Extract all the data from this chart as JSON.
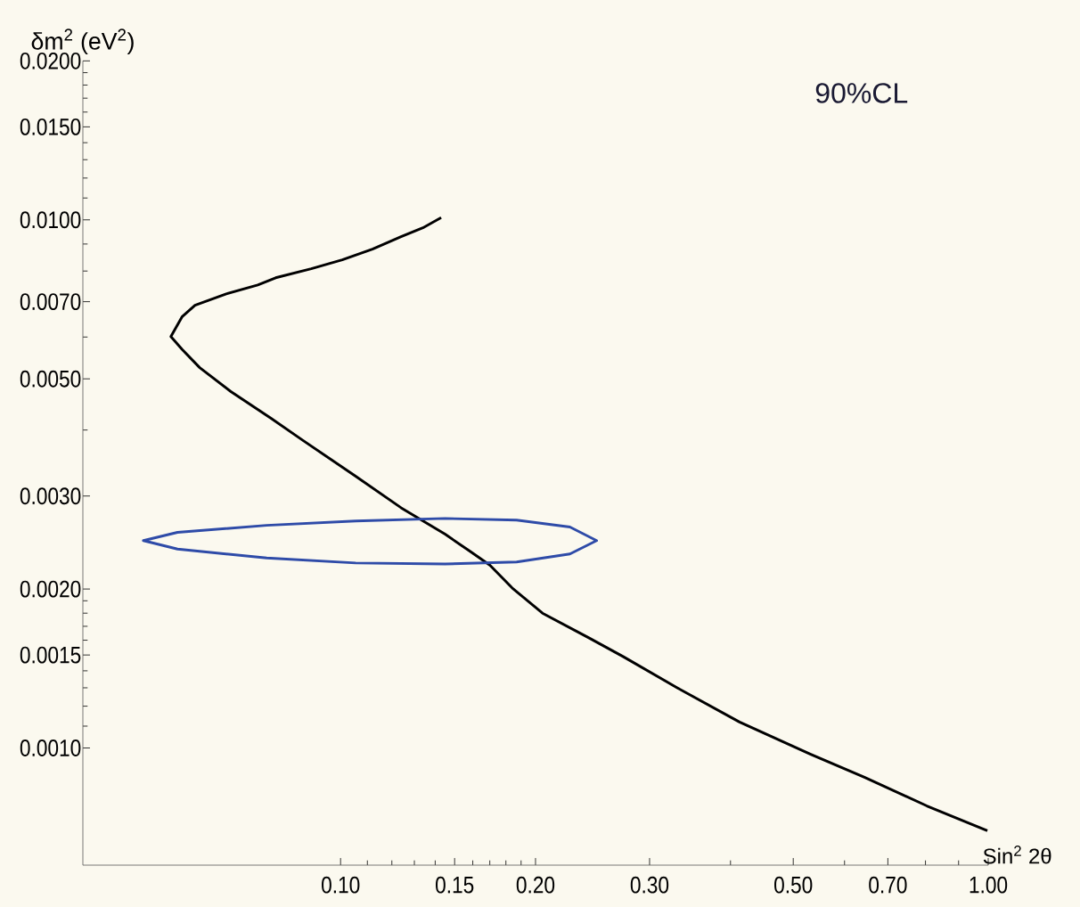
{
  "chart_data": {
    "type": "line",
    "xlabel": "Sin$^{2}$ 2θ",
    "ylabel": "δm$^{2}$ (eV$^{2}$)",
    "annotations": [
      "90%CL"
    ],
    "log": "xy",
    "marker": "none",
    "line_style": "solid",
    "xlim": [
      0.04,
      1.0
    ],
    "ylim": [
      0.0006,
      0.02
    ],
    "xticks": [
      {
        "value": 0.1,
        "label": "0.10"
      },
      {
        "value": 0.11,
        "label": null
      },
      {
        "value": 0.12,
        "label": null
      },
      {
        "value": 0.13,
        "label": null
      },
      {
        "value": 0.14,
        "label": null
      },
      {
        "value": 0.15,
        "label": "0.15"
      },
      {
        "value": 0.16,
        "label": null
      },
      {
        "value": 0.17,
        "label": null
      },
      {
        "value": 0.18,
        "label": null
      },
      {
        "value": 0.19,
        "label": null
      },
      {
        "value": 0.2,
        "label": "0.20"
      },
      {
        "value": 0.3,
        "label": "0.30"
      },
      {
        "value": 0.4,
        "label": null
      },
      {
        "value": 0.5,
        "label": "0.50"
      },
      {
        "value": 0.6,
        "label": null
      },
      {
        "value": 0.7,
        "label": "0.70"
      },
      {
        "value": 0.8,
        "label": null
      },
      {
        "value": 0.9,
        "label": null
      },
      {
        "value": 1.0,
        "label": "1.00"
      }
    ],
    "yticks": [
      {
        "value": 0.001,
        "label": "0.0010"
      },
      {
        "value": 0.0011,
        "label": null
      },
      {
        "value": 0.0012,
        "label": null
      },
      {
        "value": 0.0013,
        "label": null
      },
      {
        "value": 0.0014,
        "label": null
      },
      {
        "value": 0.0015,
        "label": "0.0015"
      },
      {
        "value": 0.0016,
        "label": null
      },
      {
        "value": 0.0017,
        "label": null
      },
      {
        "value": 0.0018,
        "label": null
      },
      {
        "value": 0.0019,
        "label": null
      },
      {
        "value": 0.002,
        "label": "0.0020"
      },
      {
        "value": 0.003,
        "label": "0.0030"
      },
      {
        "value": 0.004,
        "label": null
      },
      {
        "value": 0.005,
        "label": "0.0050"
      },
      {
        "value": 0.006,
        "label": null
      },
      {
        "value": 0.007,
        "label": "0.0070"
      },
      {
        "value": 0.008,
        "label": null
      },
      {
        "value": 0.009,
        "label": null
      },
      {
        "value": 0.01,
        "label": "0.0100"
      },
      {
        "value": 0.011,
        "label": null
      },
      {
        "value": 0.012,
        "label": null
      },
      {
        "value": 0.013,
        "label": null
      },
      {
        "value": 0.014,
        "label": null
      },
      {
        "value": 0.015,
        "label": "0.0150"
      },
      {
        "value": 0.016,
        "label": null
      },
      {
        "value": 0.017,
        "label": null
      },
      {
        "value": 0.018,
        "label": null
      },
      {
        "value": 0.019,
        "label": null
      },
      {
        "value": 0.02,
        "label": "0.0200"
      }
    ],
    "series": [
      {
        "color": "#000000",
        "x": [
          0.143,
          0.134,
          0.124,
          0.112,
          0.1006,
          0.0901,
          0.0794,
          0.0745,
          0.0666,
          0.0596,
          0.0569,
          0.0547,
          0.0569,
          0.0606,
          0.0677,
          0.0781,
          0.0873,
          0.1055,
          0.124,
          0.145,
          0.159,
          0.17,
          0.184,
          0.205,
          0.241,
          0.273,
          0.331,
          0.413,
          0.532,
          0.644,
          0.804,
          0.997
        ],
        "values": [
          0.0101,
          0.00966,
          0.00929,
          0.0088,
          0.0084,
          0.00808,
          0.00777,
          0.00753,
          0.00724,
          0.00689,
          0.00655,
          0.00601,
          0.00569,
          0.00525,
          0.00473,
          0.00421,
          0.00383,
          0.00327,
          0.00285,
          0.00254,
          0.00235,
          0.00222,
          0.00201,
          0.0018,
          0.00162,
          0.00149,
          0.0013,
          0.00112,
          0.000973,
          0.00088,
          0.000777,
          0.000697
        ]
      }
    ]
  }
}
